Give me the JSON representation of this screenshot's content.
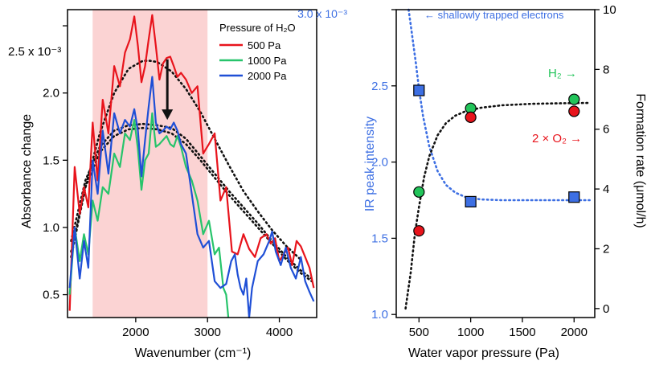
{
  "chart_data": [
    {
      "type": "line",
      "xlabel": "Wavenumber (cm⁻¹)",
      "ylabel": "Absorbance change",
      "xlim": [
        1050,
        4520
      ],
      "ylim": [
        0.33,
        2.62
      ],
      "y_exponent_label": "2.5 x 10⁻³",
      "x_ticks": [
        2000,
        3000,
        4000
      ],
      "y_ticks": [
        0.5,
        1.0,
        1.5,
        2.0
      ],
      "shaded_band": {
        "x_range": [
          1400,
          3000
        ],
        "color": "#fbd3d3"
      },
      "legend": {
        "title": "Pressure of H₂O",
        "position": "top-right",
        "entries": [
          "500 Pa",
          "1000 Pa",
          "2000 Pa"
        ]
      },
      "colors": {
        "s500": "#e8141c",
        "s1000": "#27c46b",
        "s2000": "#1f4fd6",
        "fit": "#111111",
        "arrow": "#111111"
      },
      "arrow": {
        "x": 2440,
        "y_from": 2.25,
        "y_to": 1.8
      },
      "series": [
        {
          "name": "500 Pa",
          "x": [
            1080,
            1150,
            1220,
            1280,
            1340,
            1400,
            1470,
            1540,
            1620,
            1700,
            1780,
            1850,
            1920,
            1980,
            2030,
            2080,
            2130,
            2180,
            2230,
            2280,
            2330,
            2380,
            2430,
            2480,
            2530,
            2580,
            2630,
            2700,
            2780,
            2860,
            2940,
            3020,
            3100,
            3180,
            3260,
            3340,
            3420,
            3500,
            3580,
            3660,
            3740,
            3820,
            3880,
            3940,
            4000,
            4060,
            4120,
            4180,
            4240,
            4300,
            4360,
            4420,
            4480
          ],
          "y": [
            0.38,
            1.45,
            1.1,
            1.3,
            1.15,
            1.78,
            1.35,
            1.95,
            1.7,
            2.2,
            2.05,
            2.3,
            2.4,
            2.57,
            2.35,
            2.08,
            2.2,
            2.4,
            2.58,
            2.35,
            2.1,
            2.22,
            2.26,
            2.27,
            2.2,
            2.12,
            2.15,
            2.1,
            2.0,
            2.05,
            1.55,
            1.62,
            1.7,
            1.2,
            1.3,
            0.82,
            0.8,
            0.95,
            0.84,
            0.78,
            0.92,
            0.95,
            0.88,
            0.92,
            0.75,
            0.8,
            0.85,
            0.72,
            0.9,
            0.86,
            0.78,
            0.7,
            0.55
          ]
        },
        {
          "name": "1000 Pa",
          "x": [
            1080,
            1150,
            1220,
            1280,
            1340,
            1400,
            1470,
            1540,
            1620,
            1700,
            1780,
            1850,
            1920,
            1980,
            2030,
            2080,
            2130,
            2180,
            2230,
            2280,
            2330,
            2380,
            2430,
            2480,
            2530,
            2580,
            2630,
            2700,
            2780,
            2860,
            2940,
            3020,
            3100,
            3160,
            3220,
            3260,
            3290
          ],
          "y": [
            0.5,
            1.0,
            0.75,
            0.95,
            0.8,
            1.2,
            1.05,
            1.3,
            1.25,
            1.55,
            1.45,
            1.7,
            1.65,
            1.8,
            1.58,
            1.28,
            1.5,
            1.55,
            1.85,
            1.6,
            1.62,
            1.65,
            1.68,
            1.62,
            1.6,
            1.68,
            1.6,
            1.45,
            1.35,
            1.2,
            0.95,
            1.05,
            0.8,
            0.85,
            0.55,
            0.5,
            0.33
          ]
        },
        {
          "name": "2000 Pa",
          "x": [
            1080,
            1150,
            1220,
            1280,
            1340,
            1400,
            1470,
            1540,
            1620,
            1700,
            1780,
            1850,
            1920,
            1980,
            2030,
            2080,
            2130,
            2180,
            2230,
            2280,
            2330,
            2380,
            2430,
            2480,
            2530,
            2580,
            2630,
            2700,
            2780,
            2860,
            2940,
            3020,
            3100,
            3180,
            3260,
            3330,
            3380,
            3420,
            3460,
            3500,
            3540,
            3580,
            3620,
            3700,
            3780,
            3860,
            3900,
            3950,
            4020,
            4090,
            4160,
            4230,
            4300,
            4360,
            4420,
            4480
          ],
          "y": [
            0.55,
            1.0,
            0.62,
            0.9,
            0.7,
            1.5,
            1.25,
            1.72,
            1.4,
            1.85,
            1.7,
            1.8,
            1.75,
            1.88,
            1.72,
            1.38,
            1.65,
            1.9,
            2.12,
            1.78,
            1.7,
            1.72,
            1.75,
            1.73,
            1.78,
            1.72,
            1.62,
            1.55,
            1.25,
            0.95,
            0.85,
            0.9,
            0.6,
            0.55,
            0.58,
            0.75,
            0.8,
            0.65,
            0.55,
            0.5,
            0.62,
            0.33,
            0.55,
            0.75,
            0.8,
            0.9,
            0.97,
            0.82,
            0.72,
            0.85,
            0.7,
            0.62,
            0.78,
            0.6,
            0.52,
            0.45
          ]
        },
        {
          "name": "",
          "style": "dotted-fit",
          "x": [
            1100,
            1300,
            1500,
            1700,
            1900,
            2100,
            2200,
            2300,
            2500,
            2700,
            2900,
            3100,
            3300,
            3500,
            3700,
            3900,
            4100,
            4300
          ],
          "y": [
            0.78,
            1.3,
            1.7,
            2.0,
            2.18,
            2.24,
            2.24,
            2.23,
            2.16,
            2.03,
            1.86,
            1.66,
            1.46,
            1.27,
            1.12,
            0.98,
            0.86,
            0.76
          ]
        },
        {
          "name": "",
          "style": "dotted-fit",
          "x": [
            1100,
            1300,
            1500,
            1700,
            1900,
            2100,
            2300,
            2500,
            2700,
            2900,
            3100,
            3300,
            3500,
            3700,
            3900,
            4100,
            4300,
            4450
          ],
          "y": [
            0.9,
            1.35,
            1.6,
            1.72,
            1.76,
            1.77,
            1.76,
            1.74,
            1.66,
            1.53,
            1.4,
            1.27,
            1.15,
            1.03,
            0.9,
            0.78,
            0.68,
            0.62
          ]
        },
        {
          "name": "",
          "style": "dotted-fit",
          "x": [
            1100,
            1300,
            1500,
            1700,
            1900,
            2100,
            2300,
            2500,
            2700,
            2900,
            3100,
            3300,
            3500,
            3700,
            3900,
            4100,
            4300,
            4450
          ],
          "y": [
            0.82,
            1.3,
            1.56,
            1.68,
            1.73,
            1.74,
            1.73,
            1.7,
            1.62,
            1.5,
            1.37,
            1.24,
            1.12,
            1.0,
            0.88,
            0.76,
            0.66,
            0.6
          ]
        }
      ]
    },
    {
      "type": "scatter",
      "xlabel": "Water vapor pressure (Pa)",
      "ylabel_left": "IR peak intensity",
      "ylabel_right": "Formation rate (μmol/h)",
      "xlim": [
        280,
        2200
      ],
      "ylim_left": [
        0.98,
        3.0
      ],
      "ylim_right": [
        -0.3,
        10
      ],
      "x_ticks": [
        500,
        1000,
        1500,
        2000
      ],
      "y_left_ticks": [
        "1.0",
        "1.5",
        "2.0",
        "2.5"
      ],
      "y_left_top_label": "3.0 x 10⁻³",
      "y_right_ticks": [
        0,
        2,
        4,
        6,
        8,
        10
      ],
      "colors": {
        "ir": "#3d6fe3",
        "h2": "#22c45a",
        "o2": "#e8141c",
        "fit": "#111111",
        "ir_fit": "#3d6fe3",
        "left_axis_text": "#3d6fe3"
      },
      "annotations": {
        "trapped": "← shallowly trapped electrons",
        "h2": "H₂ →",
        "o2": "2 × O₂ →"
      },
      "series": [
        {
          "name": "IR peak intensity",
          "axis": "left",
          "marker": "square",
          "x": [
            500,
            1000,
            2000
          ],
          "y": [
            2.47,
            1.74,
            1.77
          ]
        },
        {
          "name": "H₂",
          "axis": "right",
          "marker": "circle",
          "x": [
            500,
            1000,
            2000
          ],
          "y": [
            3.9,
            6.7,
            7.0
          ]
        },
        {
          "name": "2 × O₂",
          "axis": "right",
          "marker": "circle",
          "x": [
            500,
            1000,
            2000
          ],
          "y": [
            2.6,
            6.4,
            6.6
          ]
        }
      ],
      "fits": [
        {
          "axis": "left",
          "x": [
            400,
            430,
            470,
            500,
            540,
            600,
            680,
            760,
            850,
            950,
            1100,
            1300,
            1600,
            1900,
            2150
          ],
          "y": [
            3.0,
            2.85,
            2.65,
            2.48,
            2.3,
            2.1,
            1.94,
            1.85,
            1.8,
            1.77,
            1.755,
            1.75,
            1.75,
            1.75,
            1.75
          ]
        },
        {
          "axis": "right",
          "x": [
            370,
            420,
            460,
            500,
            550,
            600,
            680,
            760,
            850,
            950,
            1100,
            1300,
            1600,
            1900,
            2150
          ],
          "y": [
            0.0,
            1.2,
            2.5,
            3.4,
            4.4,
            5.1,
            5.8,
            6.2,
            6.45,
            6.6,
            6.72,
            6.8,
            6.85,
            6.87,
            6.88
          ]
        }
      ]
    }
  ]
}
